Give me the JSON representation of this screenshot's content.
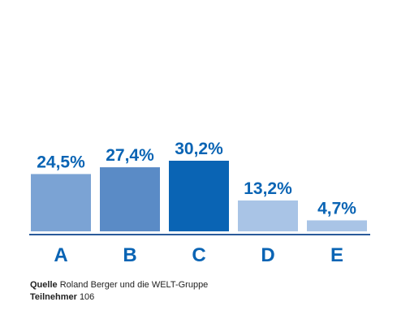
{
  "chart_data": {
    "type": "bar",
    "categories": [
      "A",
      "B",
      "C",
      "D",
      "E"
    ],
    "values": [
      24.5,
      27.4,
      30.2,
      13.2,
      4.7
    ],
    "value_labels": [
      "24,5%",
      "27,4%",
      "30,2%",
      "13,2%",
      "4,7%"
    ],
    "bar_colors": [
      "#7ba3d4",
      "#5a8bc6",
      "#0a64b4",
      "#a9c4e6",
      "#a9c4e6"
    ],
    "label_color": "#0a64b4",
    "axis_color": "#2a5a9a",
    "ylim": [
      0,
      30.2
    ],
    "grid": false,
    "legend": "none"
  },
  "footer": {
    "source_label": "Quelle",
    "source_text": "Roland Berger und die WELT-Gruppe",
    "participants_label": "Teilnehmer",
    "participants_value": "106"
  }
}
